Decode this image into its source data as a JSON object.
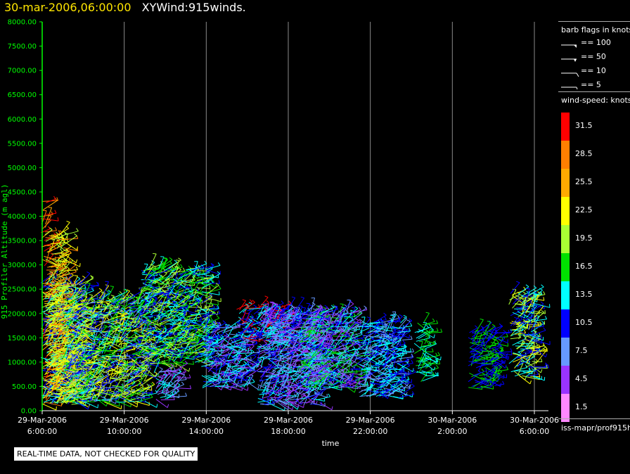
{
  "title": {
    "date": "30-mar-2006,06:00:00",
    "main": "XYWind:915winds."
  },
  "notice": "REAL-TIME DATA, NOT CHECKED FOR QUALITY",
  "legend": {
    "barb_title": "barb flags in knots",
    "barbs": [
      {
        "label": "== 100",
        "type": "flag"
      },
      {
        "label": "== 50",
        "type": "pennant"
      },
      {
        "label": "== 10",
        "type": "full"
      },
      {
        "label": "== 5",
        "type": "half"
      }
    ],
    "speed_title": "wind-speed: knots",
    "speed_bins": [
      {
        "label": "31.5",
        "color": "#ff0000"
      },
      {
        "label": "28.5",
        "color": "#ff7f00"
      },
      {
        "label": "25.5",
        "color": "#ffaa00"
      },
      {
        "label": "22.5",
        "color": "#ffff00"
      },
      {
        "label": "19.5",
        "color": "#aaff33"
      },
      {
        "label": "16.5",
        "color": "#00e000"
      },
      {
        "label": "13.5",
        "color": "#00ffff"
      },
      {
        "label": "10.5",
        "color": "#0000ff"
      },
      {
        "label": "7.5",
        "color": "#6699ff"
      },
      {
        "label": "4.5",
        "color": "#9933ff"
      },
      {
        "label": "1.5",
        "color": "#ff88ff"
      }
    ],
    "source": "iss-mapr/prof915h"
  },
  "chart_data": {
    "type": "scatter",
    "title": "30-mar-2006,06:00:00  XYWind:915winds.",
    "ylabel": "915 Profiler Altitude (m agl)",
    "xlabel": "time",
    "ylim": [
      0,
      8000
    ],
    "yticks": [
      "0.00",
      "500.00",
      "1000.00",
      "1500.00",
      "2000.00",
      "2500.00",
      "3000.00",
      "3500.00",
      "4000.00",
      "4500.00",
      "5000.00",
      "5500.00",
      "6000.00",
      "6500.00",
      "7000.00",
      "7500.00",
      "8000.00"
    ],
    "xlim": [
      "29-Mar-2006 6:00:00",
      "30-Mar-2006 6:00:00"
    ],
    "xticks": [
      {
        "date": "29-Mar-2006",
        "time": "6:00:00",
        "hours": 0
      },
      {
        "date": "29-Mar-2006",
        "time": "10:00:00",
        "hours": 4
      },
      {
        "date": "29-Mar-2006",
        "time": "14:00:00",
        "hours": 8
      },
      {
        "date": "29-Mar-2006",
        "time": "18:00:00",
        "hours": 12
      },
      {
        "date": "29-Mar-2006",
        "time": "22:00:00",
        "hours": 16
      },
      {
        "date": "30-Mar-2006",
        "time": "2:00:00",
        "hours": 20
      },
      {
        "date": "30-Mar-2006",
        "time": "6:00:00",
        "hours": 24
      }
    ],
    "grid": "vertical",
    "axis_color": "#00ff00",
    "series_note": "wind barbs colored by wind speed (knots)",
    "clusters": [
      {
        "t0": 0.0,
        "t1": 0.15,
        "z0": 150,
        "z1": 4300,
        "dominant": [
          31.5,
          28.5,
          25.5
        ]
      },
      {
        "t0": 0.0,
        "t1": 2.0,
        "z0": 150,
        "z1": 2600,
        "dominant": [
          22.5,
          19.5,
          13.5,
          10.5
        ]
      },
      {
        "t0": 0.2,
        "t1": 1.0,
        "z0": 200,
        "z1": 3600,
        "dominant": [
          28.5,
          22.5,
          19.5
        ]
      },
      {
        "t0": 1.0,
        "t1": 5.0,
        "z0": 200,
        "z1": 2300,
        "dominant": [
          22.5,
          19.5,
          16.5,
          13.5,
          10.5,
          7.5
        ]
      },
      {
        "t0": 4.8,
        "t1": 8.0,
        "z0": 1000,
        "z1": 2900,
        "dominant": [
          16.5,
          13.5,
          10.5,
          19.5
        ]
      },
      {
        "t0": 5.5,
        "t1": 6.5,
        "z0": 250,
        "z1": 800,
        "dominant": [
          4.5,
          7.5,
          13.5
        ]
      },
      {
        "t0": 7.8,
        "t1": 10.0,
        "z0": 500,
        "z1": 1700,
        "dominant": [
          13.5,
          10.5,
          7.5,
          4.5
        ]
      },
      {
        "t0": 9.5,
        "t1": 12.0,
        "z0": 1500,
        "z1": 2100,
        "dominant": [
          10.5,
          13.5,
          31.5
        ]
      },
      {
        "t0": 10.5,
        "t1": 13.5,
        "z0": 150,
        "z1": 2000,
        "dominant": [
          4.5,
          7.5,
          10.5,
          13.5
        ]
      },
      {
        "t0": 12.5,
        "t1": 15.3,
        "z0": 500,
        "z1": 2000,
        "dominant": [
          7.5,
          10.5,
          13.5,
          16.5,
          4.5
        ]
      },
      {
        "t0": 15.5,
        "t1": 17.5,
        "z0": 300,
        "z1": 1800,
        "dominant": [
          13.5,
          10.5,
          7.5
        ]
      },
      {
        "t0": 18.2,
        "t1": 18.7,
        "z0": 600,
        "z1": 1800,
        "dominant": [
          16.5,
          13.5
        ]
      },
      {
        "t0": 20.8,
        "t1": 22.2,
        "z0": 500,
        "z1": 1600,
        "dominant": [
          10.5,
          16.5
        ]
      },
      {
        "t0": 22.8,
        "t1": 24.0,
        "z0": 700,
        "z1": 2400,
        "dominant": [
          13.5,
          19.5,
          22.5,
          10.5
        ]
      }
    ]
  }
}
